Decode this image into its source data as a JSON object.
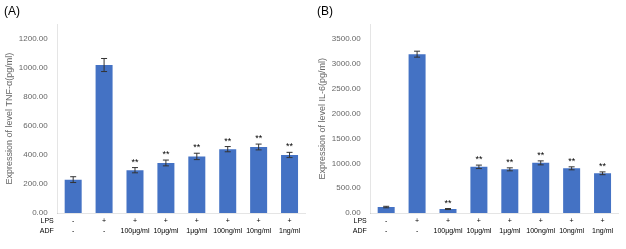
{
  "chart_data": [
    {
      "type": "bar",
      "title": "(A)",
      "ylabel": "Expression of level TNF-α(pg/ml)",
      "categories": [
        [
          "-",
          "-"
        ],
        [
          "+",
          "-"
        ],
        [
          "+",
          "100μg/ml"
        ],
        [
          "+",
          "10μg/ml"
        ],
        [
          "+",
          "1μg/ml"
        ],
        [
          "+",
          "100ng/ml"
        ],
        [
          "+",
          "10ng/ml"
        ],
        [
          "+",
          "1ng/ml"
        ]
      ],
      "values": [
        230,
        1020,
        295,
        345,
        390,
        440,
        455,
        400
      ],
      "errors": [
        20,
        45,
        18,
        20,
        22,
        18,
        20,
        18
      ],
      "color": "#4472C4",
      "ylim": [
        0,
        1300
      ],
      "yticks": [
        {
          "value": 0,
          "label": "0.00"
        },
        {
          "value": 200,
          "label": "200.00"
        },
        {
          "value": 400,
          "label": "400.00"
        },
        {
          "value": 600,
          "label": "600.00"
        },
        {
          "value": 800,
          "label": "800.00"
        },
        {
          "value": 1000,
          "label": "1000.00"
        },
        {
          "value": 1200,
          "label": "1200.00"
        }
      ],
      "grid": false,
      "annotations": [
        {
          "text": "LPS",
          "row": 0
        },
        {
          "text": "ADF",
          "row": 1
        },
        {
          "text": "**",
          "category": 2
        },
        {
          "text": "**",
          "category": 3
        },
        {
          "text": "**",
          "category": 4
        },
        {
          "text": "**",
          "category": 5
        },
        {
          "text": "**",
          "category": 6
        },
        {
          "text": "**",
          "category": 7
        }
      ]
    },
    {
      "type": "bar",
      "title": "(B)",
      "ylabel": "Expression of level IL-6(pg/ml)",
      "categories": [
        [
          "-",
          "-"
        ],
        [
          "+",
          "-"
        ],
        [
          "+",
          "100μg/ml"
        ],
        [
          "+",
          "10μg/ml"
        ],
        [
          "+",
          "1μg/ml"
        ],
        [
          "+",
          "100ng/ml"
        ],
        [
          "+",
          "10ng/ml"
        ],
        [
          "+",
          "1ng/ml"
        ]
      ],
      "values": [
        120,
        3200,
        80,
        930,
        880,
        1010,
        900,
        800
      ],
      "errors": [
        15,
        60,
        10,
        35,
        30,
        40,
        30,
        28
      ],
      "color": "#4472C4",
      "ylim": [
        0,
        3800
      ],
      "yticks": [
        {
          "value": 0,
          "label": "0.00"
        },
        {
          "value": 500,
          "label": "500.00"
        },
        {
          "value": 1000,
          "label": "1000.00"
        },
        {
          "value": 1500,
          "label": "1500.00"
        },
        {
          "value": 2000,
          "label": "2000.00"
        },
        {
          "value": 2500,
          "label": "2500.00"
        },
        {
          "value": 3000,
          "label": "3000.00"
        },
        {
          "value": 3500,
          "label": "3500.00"
        }
      ],
      "grid": false,
      "annotations": [
        {
          "text": "LPS",
          "row": 0
        },
        {
          "text": "ADF",
          "row": 1
        },
        {
          "text": "**",
          "category": 2
        },
        {
          "text": "**",
          "category": 3
        },
        {
          "text": "**",
          "category": 4
        },
        {
          "text": "**",
          "category": 5
        },
        {
          "text": "**",
          "category": 6
        },
        {
          "text": "**",
          "category": 7
        }
      ]
    }
  ]
}
